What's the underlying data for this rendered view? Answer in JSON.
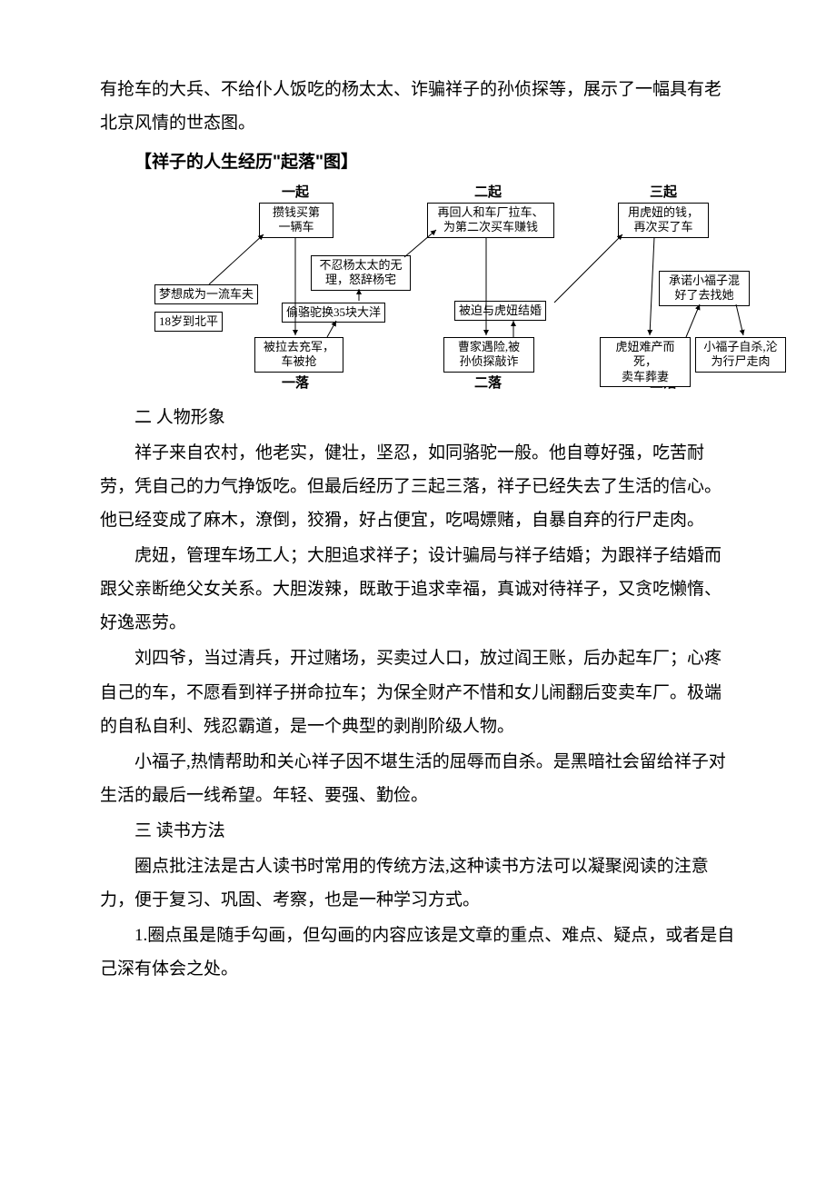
{
  "intro_tail": "有抢车的大兵、不给仆人饭吃的杨太太、诈骗祥子的孙侦探等，展示了一幅具有老北京风情的世态图。",
  "diagram_title": "【祥子的人生经历\"起落\"图】",
  "diagram": {
    "stroke": "#000000",
    "bg": "#ffffff",
    "labels": {
      "q1": "一起",
      "q2": "二起",
      "q3": "三起",
      "l1": "一落",
      "l2": "二落",
      "l3": "三落"
    },
    "nodes": {
      "n_dream": {
        "text": "梦想成为一流车夫"
      },
      "n_18": {
        "text": "18岁到北平"
      },
      "n_buy1": {
        "text": "攒钱买第\n一辆车"
      },
      "n_angry": {
        "text": "不忍杨太太的无\n理，怒辞杨宅"
      },
      "n_camel": {
        "text": "偷骆驼换35块大洋"
      },
      "n_rob": {
        "text": "被拉去充军，\n车被抢"
      },
      "n_back": {
        "text": "再回人和车厂拉车、\n为第二次买车赚钱"
      },
      "n_marry": {
        "text": "被迫与虎妞结婚"
      },
      "n_cao": {
        "text": "曹家遇险,被\n孙侦探敲诈"
      },
      "n_buy3": {
        "text": "用虎妞的钱，\n再次买了车"
      },
      "n_promise": {
        "text": "承诺小福子混\n好了去找她"
      },
      "n_death": {
        "text": "虎妞难产而死，\n卖车葬妻"
      },
      "n_xiaofu": {
        "text": "小福子自杀,沦\n为行尸走肉"
      }
    }
  },
  "section2_title": "二 人物形象",
  "para_xiangzi": "祥子来自农村，他老实，健壮，坚忍，如同骆驼一般。他自尊好强，吃苦耐劳，凭自己的力气挣饭吃。但最后经历了三起三落，祥子已经失去了生活的信心。他已经变成了麻木，潦倒，狡猾，好占便宜，吃喝嫖赌，自暴自弃的行尸走肉。",
  "para_huniu": "虎妞，管理车场工人；大胆追求祥子；设计骗局与祥子结婚；为跟祥子结婚而跟父亲断绝父女关系。大胆泼辣，既敢于追求幸福，真诚对待祥子，又贪吃懒惰、好逸恶劳。",
  "para_liusiye": "刘四爷，当过清兵，开过赌场，买卖过人口，放过阎王账，后办起车厂；心疼自己的车，不愿看到祥子拼命拉车；为保全财产不惜和女儿闹翻后变卖车厂。极端的自私自利、残忍霸道，是一个典型的剥削阶级人物。",
  "para_xiaofuzi": "小福子,热情帮助和关心祥子因不堪生活的屈辱而自杀。是黑暗社会留给祥子对生活的最后一线希望。年轻、要强、勤俭。",
  "section3_title": "三 读书方法",
  "para_method1": "圈点批注法是古人读书时常用的传统方法,这种读书方法可以凝聚阅读的注意力，便于复习、巩固、考察，也是一种学习方式。",
  "para_method2": "1.圈点虽是随手勾画，但勾画的内容应该是文章的重点、难点、疑点，或者是自己深有体会之处。"
}
